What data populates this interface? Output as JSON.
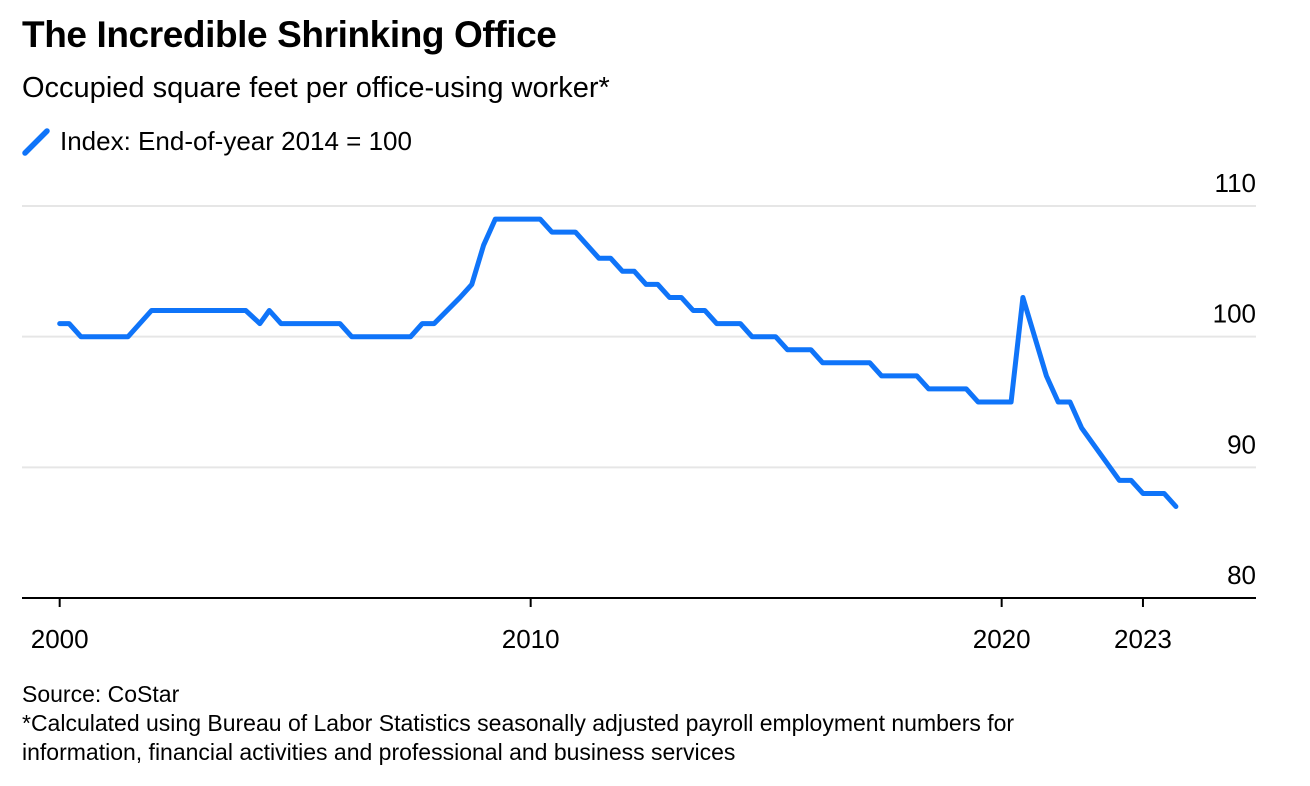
{
  "colors": {
    "line": "#0f74f9",
    "grid": "#e6e6e6",
    "axis": "#000000"
  },
  "legend_icon": "diagonal-line-icon",
  "chart_data": {
    "type": "line",
    "title": "The Incredible Shrinking Office",
    "subtitle": "Occupied square feet per office-using worker*",
    "legend": [
      "Index: End-of-year 2014 = 100"
    ],
    "xlabel": "",
    "ylabel": "",
    "xlim": [
      1999.2,
      2025.4
    ],
    "ylim": [
      80,
      110
    ],
    "yticks": [
      {
        "value": 110,
        "label": "110"
      },
      {
        "value": 100,
        "label": "100"
      },
      {
        "value": 90,
        "label": "90"
      },
      {
        "value": 80,
        "label": "80"
      }
    ],
    "xticks": [
      {
        "value": 2000,
        "label": "2000"
      },
      {
        "value": 2010,
        "label": "2010"
      },
      {
        "value": 2020,
        "label": "2020"
      },
      {
        "value": 2023,
        "label": "2023"
      }
    ],
    "series": [
      {
        "name": "Index: End-of-year 2014 = 100",
        "points": [
          [
            2000.0,
            101.0
          ],
          [
            2000.2,
            101.0
          ],
          [
            2000.45,
            100.0
          ],
          [
            2001.45,
            100.0
          ],
          [
            2001.95,
            102.0
          ],
          [
            2003.95,
            102.0
          ],
          [
            2004.25,
            101.0
          ],
          [
            2004.45,
            102.0
          ],
          [
            2004.7,
            101.0
          ],
          [
            2005.95,
            101.0
          ],
          [
            2006.2,
            100.0
          ],
          [
            2007.45,
            100.0
          ],
          [
            2007.7,
            101.0
          ],
          [
            2007.95,
            101.0
          ],
          [
            2008.5,
            103.0
          ],
          [
            2008.75,
            104.0
          ],
          [
            2009.0,
            107.0
          ],
          [
            2009.25,
            109.0
          ],
          [
            2010.2,
            109.0
          ],
          [
            2010.45,
            108.0
          ],
          [
            2010.95,
            108.0
          ],
          [
            2011.45,
            106.0
          ],
          [
            2011.7,
            106.0
          ],
          [
            2011.95,
            105.0
          ],
          [
            2012.2,
            105.0
          ],
          [
            2012.45,
            104.0
          ],
          [
            2012.7,
            104.0
          ],
          [
            2012.95,
            103.0
          ],
          [
            2013.2,
            103.0
          ],
          [
            2013.45,
            102.0
          ],
          [
            2013.7,
            102.0
          ],
          [
            2013.95,
            101.0
          ],
          [
            2014.45,
            101.0
          ],
          [
            2014.7,
            100.0
          ],
          [
            2015.2,
            100.0
          ],
          [
            2015.45,
            99.0
          ],
          [
            2015.95,
            99.0
          ],
          [
            2016.2,
            98.0
          ],
          [
            2017.2,
            98.0
          ],
          [
            2017.45,
            97.0
          ],
          [
            2018.2,
            97.0
          ],
          [
            2018.45,
            96.0
          ],
          [
            2019.25,
            96.0
          ],
          [
            2019.5,
            95.0
          ],
          [
            2020.2,
            95.0
          ],
          [
            2020.45,
            103.0
          ],
          [
            2020.95,
            97.0
          ],
          [
            2021.2,
            95.0
          ],
          [
            2021.45,
            95.0
          ],
          [
            2021.7,
            93.0
          ],
          [
            2022.5,
            89.0
          ],
          [
            2022.75,
            89.0
          ],
          [
            2023.0,
            88.0
          ],
          [
            2023.45,
            88.0
          ],
          [
            2023.7,
            87.0
          ]
        ]
      }
    ]
  },
  "footer": {
    "source": "Source: CoStar",
    "note_line1": "*Calculated using Bureau of Labor Statistics seasonally adjusted payroll employment numbers for",
    "note_line2": "information, financial activities and professional and business services"
  }
}
